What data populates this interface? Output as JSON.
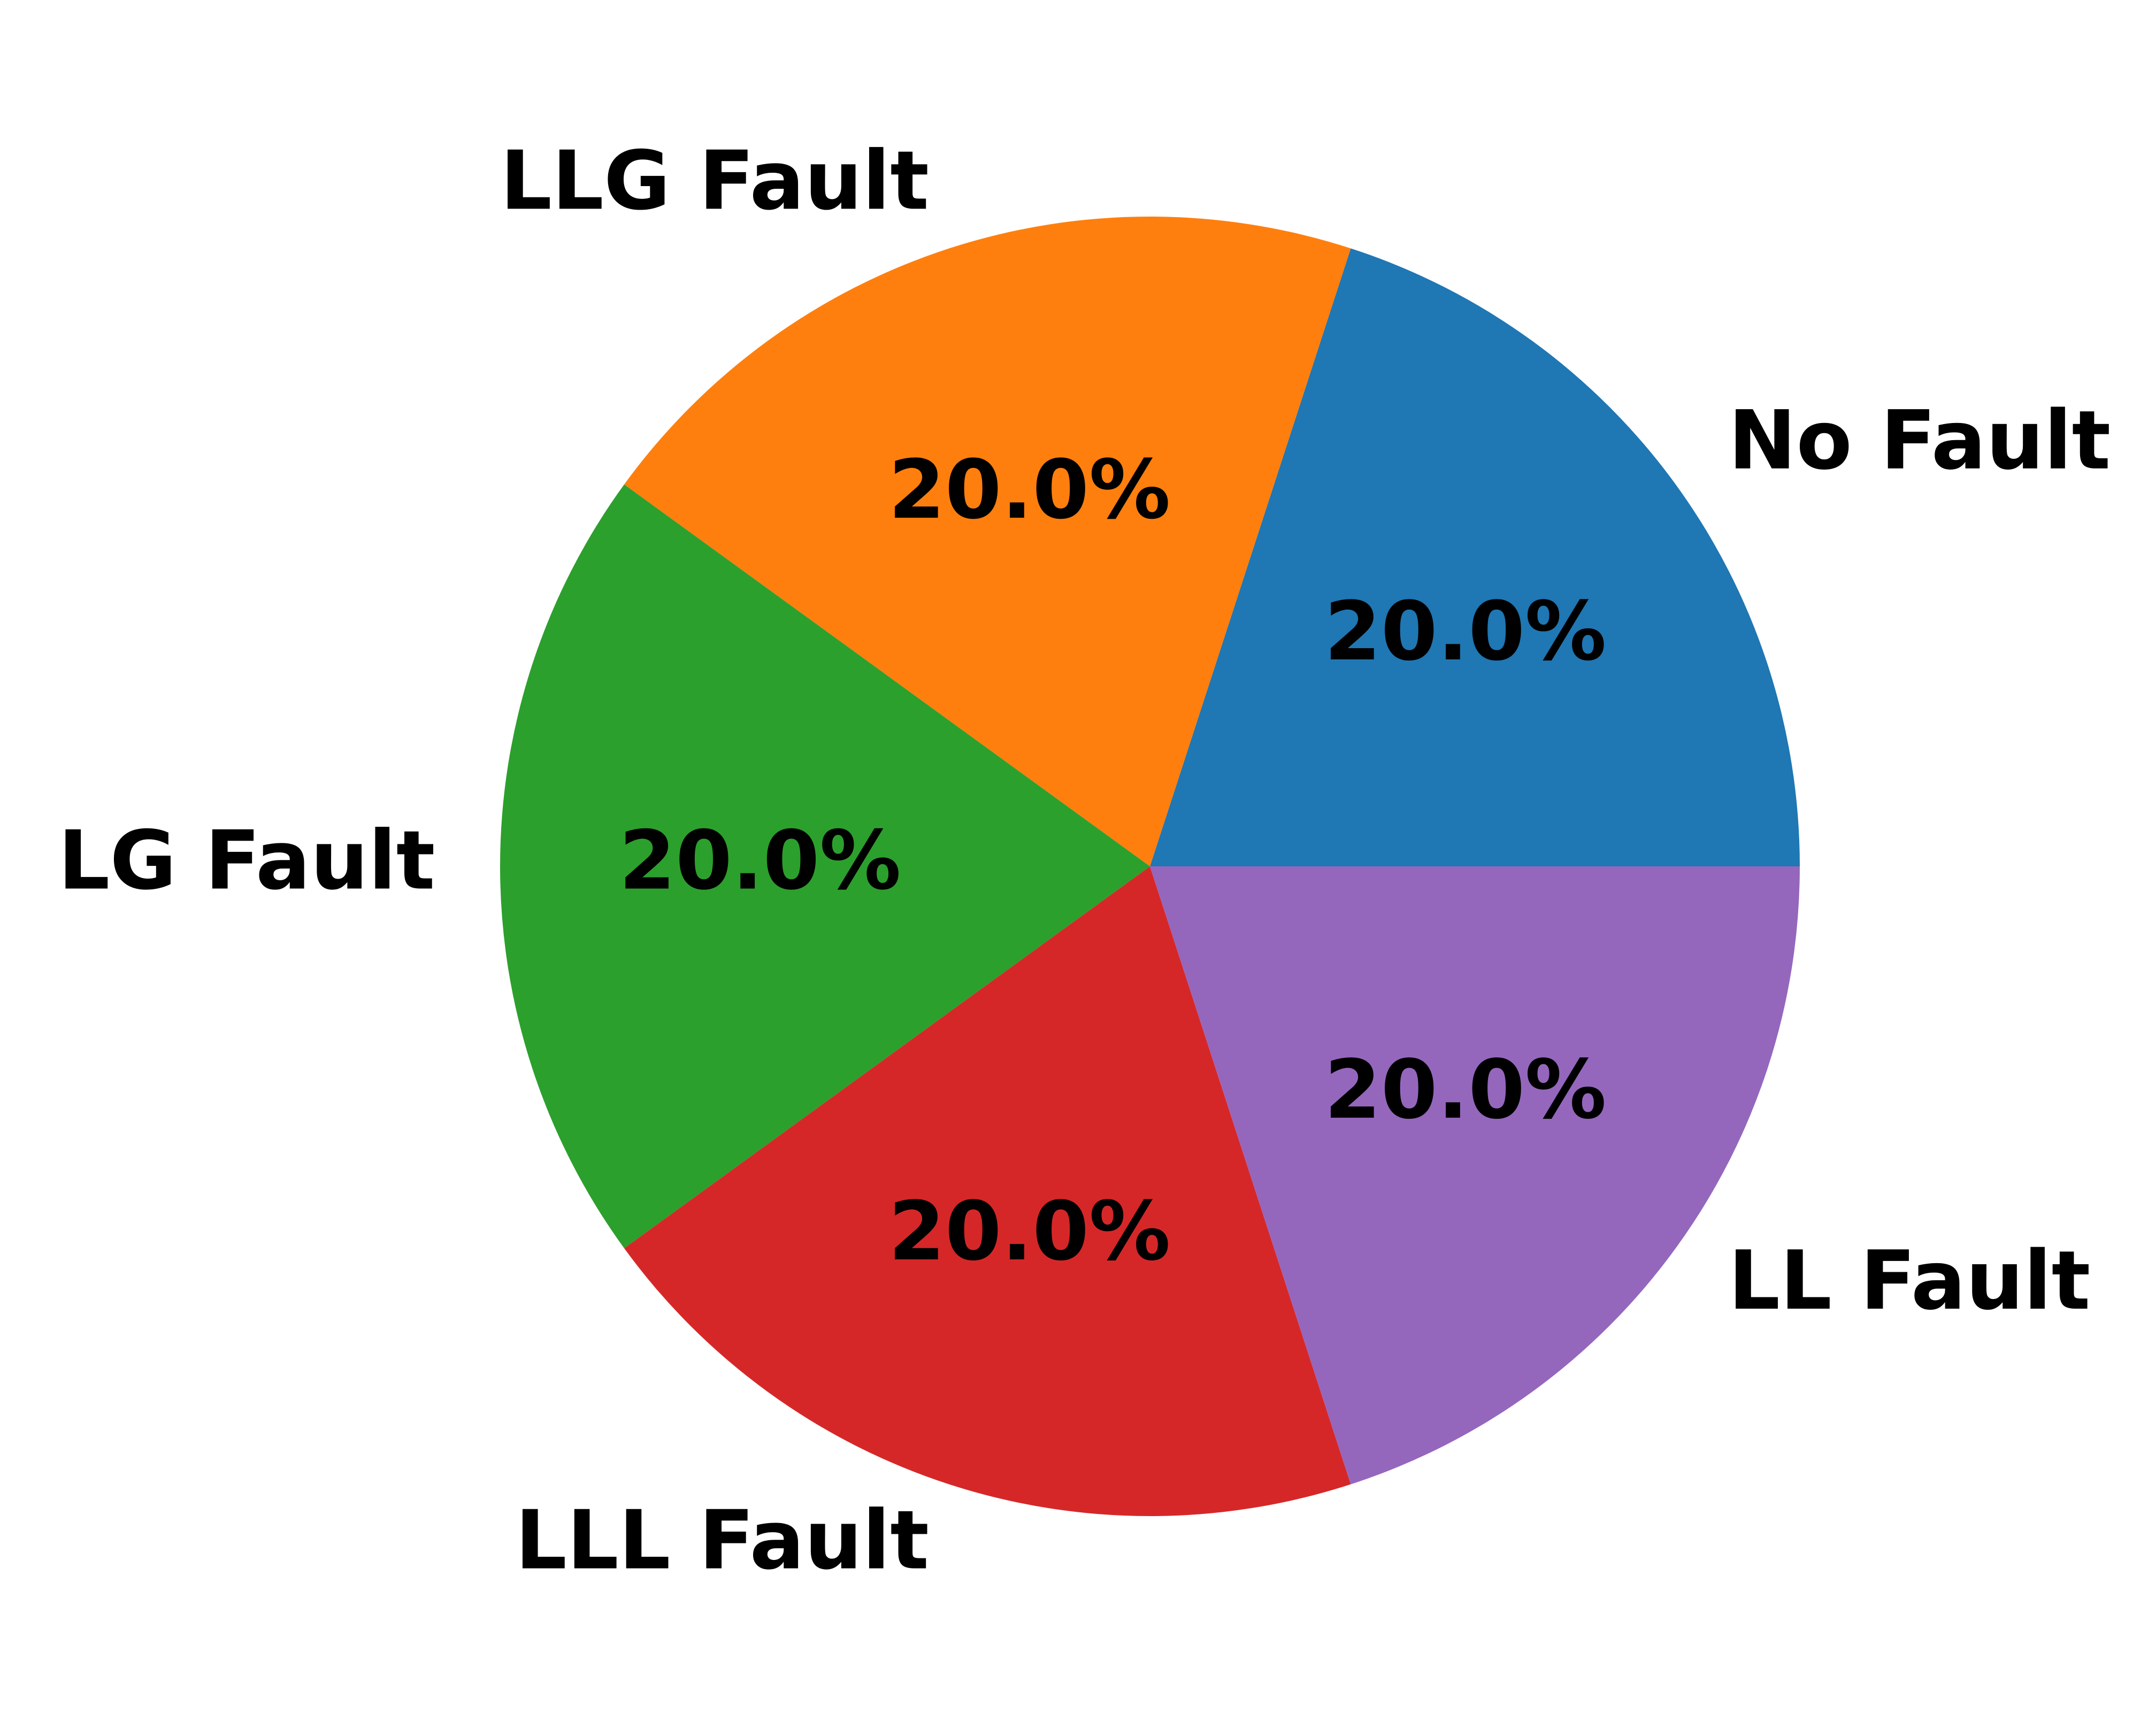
{
  "chart_data": {
    "type": "pie",
    "start_angle_deg": 0,
    "direction": "counterclockwise",
    "slices": [
      {
        "label": "No Fault",
        "value": 20.0,
        "pct_label": "20.0%",
        "color": "#1f77b4"
      },
      {
        "label": "LLG Fault",
        "value": 20.0,
        "pct_label": "20.0%",
        "color": "#ff7f0e"
      },
      {
        "label": "LG Fault",
        "value": 20.0,
        "pct_label": "20.0%",
        "color": "#2ca02c"
      },
      {
        "label": "LLL Fault",
        "value": 20.0,
        "pct_label": "20.0%",
        "color": "#d62728"
      },
      {
        "label": "LL Fault",
        "value": 20.0,
        "pct_label": "20.0%",
        "color": "#9467bd"
      }
    ],
    "title": "",
    "legend": "none"
  }
}
